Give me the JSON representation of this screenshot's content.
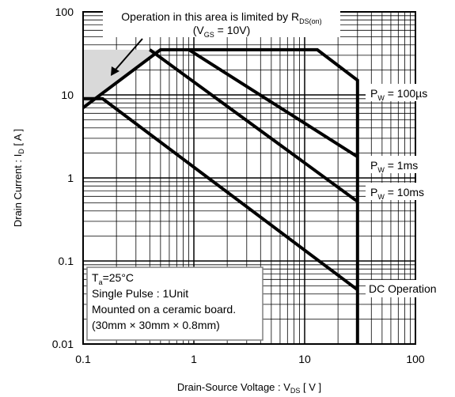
{
  "chart_data": {
    "type": "line",
    "x_scale": "log",
    "y_scale": "log",
    "xlim": [
      0.1,
      100
    ],
    "ylim": [
      0.01,
      100
    ],
    "grid": true,
    "xlabel": "Drain-Source  Voltage : V",
    "xlabel_sub": "DS",
    "xlabel_tail": " [ V ]",
    "ylabel": "Drain  Current : I",
    "ylabel_sub": "D",
    "ylabel_tail": " [ A ]",
    "x_ticks": [
      0.1,
      1,
      10,
      100
    ],
    "x_tick_labels": [
      "0.1",
      "1",
      "10",
      "100"
    ],
    "y_ticks": [
      0.01,
      0.1,
      1,
      10,
      100
    ],
    "y_tick_labels": [
      "0.01",
      "0.1",
      "1",
      "10",
      "100"
    ],
    "series": [
      {
        "name": "P_W = 100µs",
        "label": "P",
        "sub": "W",
        "tail": " = 100µs",
        "points": [
          [
            0.1,
            7
          ],
          [
            0.5,
            35
          ],
          [
            13,
            35
          ],
          [
            30,
            15
          ],
          [
            30,
            0.01
          ]
        ]
      },
      {
        "name": "P_W = 1ms",
        "label": "P",
        "sub": "W",
        "tail": " = 1ms",
        "points": [
          [
            0.9,
            35
          ],
          [
            30,
            1.8
          ]
        ]
      },
      {
        "name": "P_W = 10ms",
        "label": "P",
        "sub": "W",
        "tail": " = 10ms",
        "points": [
          [
            0.4,
            35
          ],
          [
            30,
            0.52
          ]
        ]
      },
      {
        "name": "DC Operation",
        "label": "DC Operation",
        "sub": "",
        "tail": "",
        "points": [
          [
            0.1,
            9
          ],
          [
            0.15,
            9
          ],
          [
            30,
            0.045
          ]
        ]
      }
    ],
    "rds_region": {
      "points": [
        [
          0.1,
          7
        ],
        [
          0.5,
          35
        ],
        [
          0.1,
          35
        ]
      ],
      "fill": "#d9d9d9"
    },
    "annotation_rds": {
      "line1": "Operation in this area is limited by R",
      "line1_sub": "DS(on)",
      "line2_pre": "(V",
      "line2_sub": "GS",
      "line2_tail": " = 10V)"
    },
    "conditions": {
      "line1_pre": "T",
      "line1_sub": "a",
      "line1_tail": "=25°C",
      "line2": "Single Pulse : 1Unit",
      "line3": "Mounted on a ceramic board.",
      "line4": "(30mm × 30mm × 0.8mm)"
    },
    "colors": {
      "line": "#000000",
      "grid": "#000000",
      "region": "#d9d9d9",
      "box_border": "#808080"
    }
  }
}
